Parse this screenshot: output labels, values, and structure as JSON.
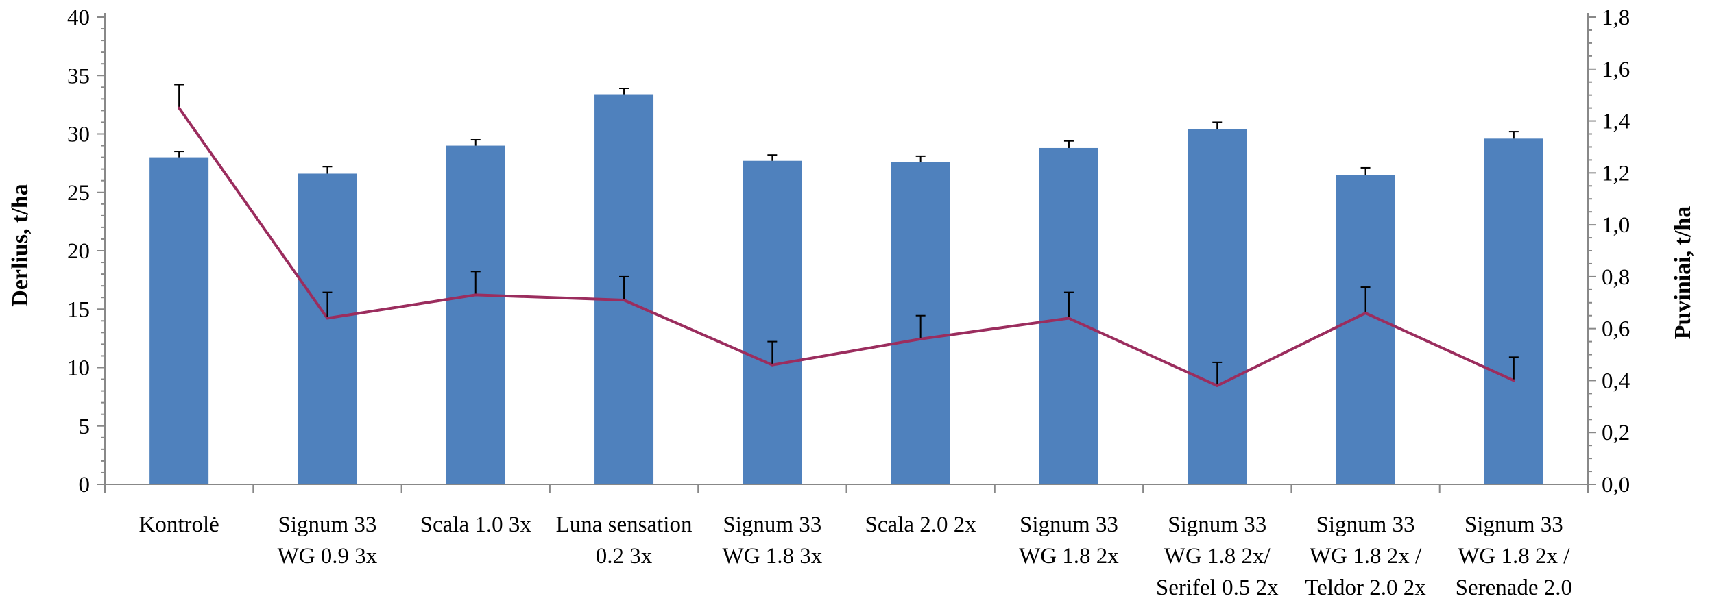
{
  "chart_data": {
    "type": "bar",
    "categories": [
      [
        "Kontrolė"
      ],
      [
        "Signum 33",
        "WG 0.9 3x"
      ],
      [
        "Scala 1.0 3x"
      ],
      [
        "Luna sensation",
        "0.2 3x"
      ],
      [
        "Signum 33",
        "WG 1.8 3x"
      ],
      [
        "Scala 2.0 2x"
      ],
      [
        "Signum 33",
        "WG 1.8 2x"
      ],
      [
        "Signum 33",
        "WG 1.8 2x/",
        "Serifel 0.5 2x"
      ],
      [
        "Signum 33",
        "WG 1.8 2x /",
        "Teldor 2.0 2x"
      ],
      [
        "Signum 33",
        "WG 1.8 2x /",
        "Serenade 2.0"
      ]
    ],
    "ylabel": "Derlius, t/ha",
    "y2label": "Puviniai, t/ha",
    "ylim": [
      0,
      40
    ],
    "y2lim": [
      0,
      1.8
    ],
    "yticks": [
      "0",
      "5",
      "10",
      "15",
      "20",
      "25",
      "30",
      "35",
      "40"
    ],
    "y2ticks": [
      "0,0",
      "0,2",
      "0,4",
      "0,6",
      "0,8",
      "1,0",
      "1,2",
      "1,4",
      "1,6",
      "1,8"
    ],
    "series": [
      {
        "type": "bar",
        "axis": "left",
        "color": "#4F81BD",
        "values": [
          28.0,
          26.6,
          29.0,
          33.4,
          27.7,
          27.6,
          28.8,
          30.4,
          26.5,
          29.6
        ],
        "error": [
          0.5,
          0.6,
          0.5,
          0.5,
          0.5,
          0.5,
          0.6,
          0.6,
          0.6,
          0.6
        ]
      },
      {
        "type": "line",
        "axis": "right",
        "color": "#9B2D5E",
        "values": [
          1.45,
          0.64,
          0.73,
          0.71,
          0.46,
          0.56,
          0.64,
          0.38,
          0.66,
          0.4
        ],
        "error": [
          0.09,
          0.1,
          0.09,
          0.09,
          0.09,
          0.09,
          0.1,
          0.09,
          0.1,
          0.09
        ]
      }
    ],
    "grid": false,
    "legend": "none"
  }
}
